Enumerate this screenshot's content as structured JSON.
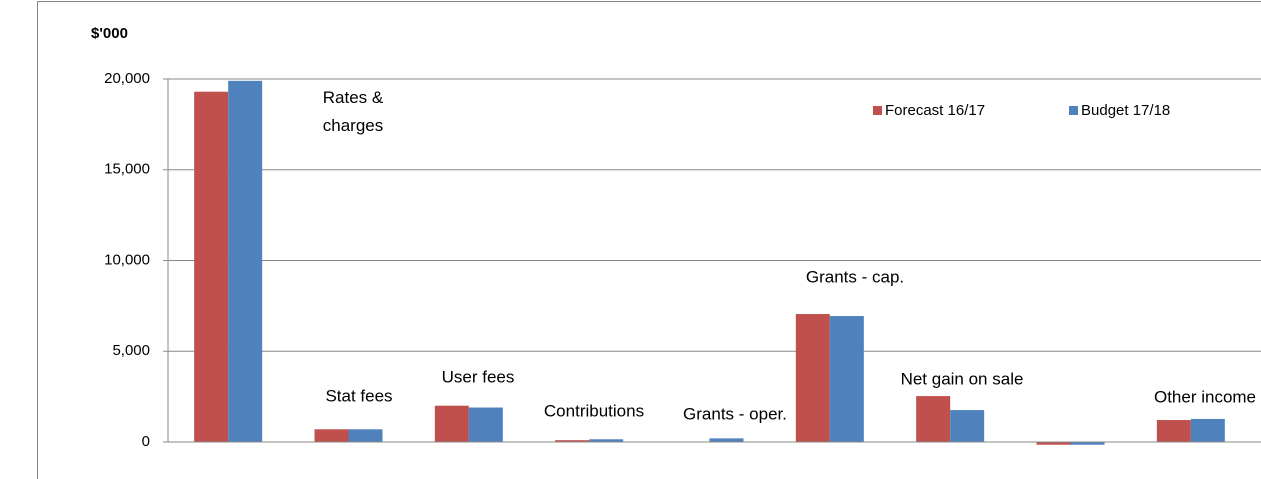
{
  "chart_data": {
    "type": "bar",
    "y_label": "$'000",
    "categories": [
      "Rates & charges",
      "Stat fees",
      "User fees",
      "Contributions",
      "Grants - oper.",
      "Grants - cap.",
      "Net gain on sale",
      null,
      "Other income"
    ],
    "series": [
      {
        "name": "Forecast 16/17",
        "color": "#c0504d",
        "values": [
          19300,
          700,
          2000,
          100,
          0,
          7050,
          2530,
          -150,
          1210
        ]
      },
      {
        "name": "Budget 17/18",
        "color": "#4f81bd",
        "values": [
          19900,
          700,
          1900,
          150,
          200,
          6940,
          1760,
          -150,
          1270
        ]
      }
    ],
    "ylim": [
      -500,
      20000
    ],
    "yticks": [
      0,
      {
        "value": 5000,
        "label": "5,000"
      },
      {
        "value": 10000,
        "label": "10,000"
      },
      {
        "value": 15000,
        "label": "15,000"
      },
      {
        "value": 20000,
        "label": "20,000"
      }
    ],
    "grid": true,
    "legend": "top-right"
  }
}
